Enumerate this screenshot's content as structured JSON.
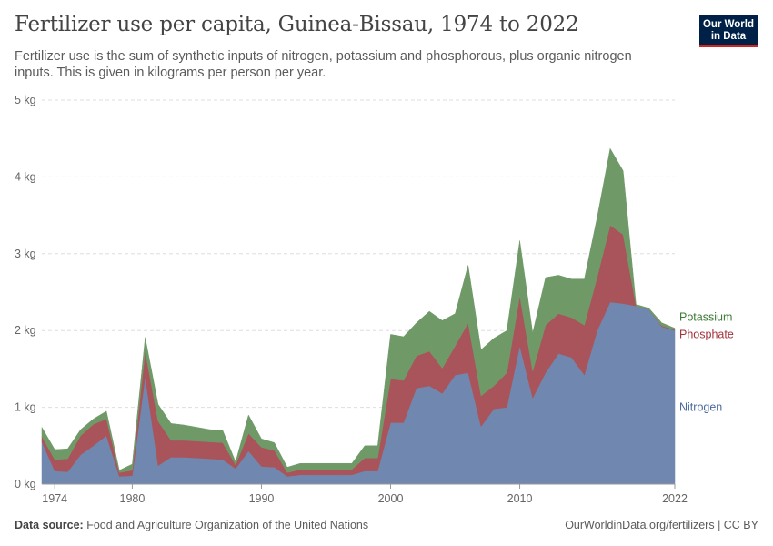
{
  "header": {
    "title": "Fertilizer use per capita, Guinea-Bissau, 1974 to 2022",
    "subtitle": "Fertilizer use is the sum of synthetic inputs of nitrogen, potassium and phosphorous, plus organic nitrogen inputs. This is given in kilograms per person per year.",
    "logo_line1": "Our World",
    "logo_line2": "in Data"
  },
  "footer": {
    "source_label": "Data source:",
    "source_text": "Food and Agriculture Organization of the United Nations",
    "url_license": "OurWorldinData.org/fertilizers | CC BY"
  },
  "colors": {
    "nitrogen": "#7088b0",
    "phosphate": "#a9545a",
    "potassium": "#6f9a68",
    "nitrogen_label": "#4c6a9c",
    "phosphate_label": "#a2333c",
    "potassium_label": "#3d7a36",
    "grid": "#dddddd"
  },
  "chart_data": {
    "type": "area",
    "stacked": true,
    "x_tick_labels": [
      "1974",
      "1980",
      "1990",
      "2000",
      "2010",
      "2022"
    ],
    "y_tick_labels": [
      "0 kg",
      "1 kg",
      "2 kg",
      "3 kg",
      "4 kg",
      "5 kg"
    ],
    "xlim": [
      1973,
      2022
    ],
    "ylim": [
      0,
      5
    ],
    "grid": "horizontal dashed",
    "legend": "right, end of series",
    "x": [
      1973,
      1974,
      1975,
      1976,
      1977,
      1978,
      1979,
      1980,
      1981,
      1982,
      1983,
      1984,
      1985,
      1986,
      1987,
      1988,
      1989,
      1990,
      1991,
      1992,
      1993,
      1994,
      1995,
      1996,
      1997,
      1998,
      1999,
      2000,
      2001,
      2002,
      2003,
      2004,
      2005,
      2006,
      2007,
      2008,
      2009,
      2010,
      2011,
      2012,
      2013,
      2014,
      2015,
      2016,
      2017,
      2018,
      2019,
      2020,
      2021,
      2022
    ],
    "series": [
      {
        "name": "Nitrogen",
        "key": "nitrogen",
        "values": [
          0.55,
          0.17,
          0.16,
          0.38,
          0.5,
          0.63,
          0.1,
          0.11,
          1.4,
          0.24,
          0.35,
          0.35,
          0.34,
          0.33,
          0.32,
          0.2,
          0.43,
          0.23,
          0.22,
          0.1,
          0.12,
          0.12,
          0.12,
          0.12,
          0.12,
          0.17,
          0.17,
          0.8,
          0.8,
          1.25,
          1.28,
          1.18,
          1.42,
          1.45,
          0.75,
          0.98,
          1.0,
          1.8,
          1.12,
          1.45,
          1.7,
          1.65,
          1.42,
          2.0,
          2.37,
          2.35,
          2.32,
          2.27,
          2.05,
          2.0
        ]
      },
      {
        "name": "Phosphate",
        "key": "phosphate",
        "values": [
          0.07,
          0.15,
          0.17,
          0.25,
          0.28,
          0.22,
          0.05,
          0.07,
          0.33,
          0.58,
          0.22,
          0.22,
          0.22,
          0.22,
          0.22,
          0.05,
          0.23,
          0.25,
          0.22,
          0.05,
          0.07,
          0.07,
          0.07,
          0.07,
          0.07,
          0.17,
          0.17,
          0.57,
          0.55,
          0.42,
          0.45,
          0.33,
          0.38,
          0.65,
          0.4,
          0.3,
          0.45,
          0.65,
          0.35,
          0.62,
          0.52,
          0.52,
          0.65,
          0.7,
          1.0,
          0.9,
          0.0,
          0.0,
          0.01,
          0.01
        ]
      },
      {
        "name": "Potassium",
        "key": "potassium",
        "values": [
          0.12,
          0.13,
          0.13,
          0.08,
          0.07,
          0.1,
          0.03,
          0.08,
          0.18,
          0.22,
          0.22,
          0.2,
          0.18,
          0.16,
          0.16,
          0.04,
          0.24,
          0.11,
          0.1,
          0.07,
          0.08,
          0.08,
          0.08,
          0.08,
          0.08,
          0.16,
          0.16,
          0.58,
          0.57,
          0.43,
          0.52,
          0.62,
          0.42,
          0.75,
          0.6,
          0.62,
          0.55,
          0.72,
          0.5,
          0.62,
          0.5,
          0.5,
          0.6,
          0.78,
          1.0,
          0.83,
          0.02,
          0.02,
          0.04,
          0.02
        ]
      }
    ]
  }
}
